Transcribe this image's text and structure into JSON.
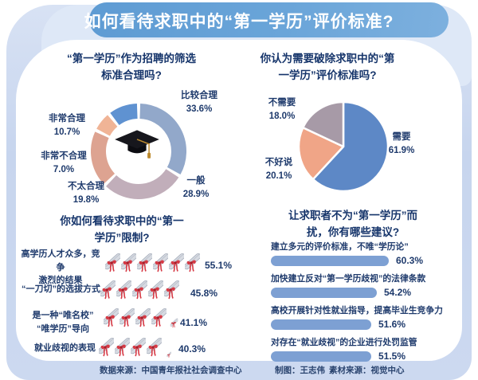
{
  "banner": {
    "title": "如何看待求职中的“第一学历”评价标准?"
  },
  "chart_data": [
    {
      "id": "reasonable-donut",
      "type": "pie",
      "variant": "donut",
      "title": "“第一学历”作为招聘的筛选\n标准合理吗?",
      "labels": [
        "比较合理",
        "一般",
        "不太合理",
        "非常不合理",
        "非常合理"
      ],
      "values": [
        33.6,
        28.9,
        19.8,
        7.0,
        10.7
      ],
      "colors": [
        "#92a8ca",
        "#c1aeba",
        "#dda391",
        "#f0b496",
        "#5f92d1"
      ],
      "start_angle_deg": 0,
      "direction": "clockwise",
      "center_icon": "graduation-cap"
    },
    {
      "id": "abolish-pie",
      "type": "pie",
      "title": "你认为需要破除求职中的“第\n一学历”评价标准吗?",
      "labels": [
        "需要",
        "不好说",
        "不需要"
      ],
      "values": [
        61.9,
        20.1,
        18.0
      ],
      "colors": [
        "#5d88c6",
        "#f0a587",
        "#a79aa7"
      ],
      "start_angle_deg": 0,
      "direction": "clockwise"
    },
    {
      "id": "restriction-pictogram",
      "type": "bar",
      "variant": "pictogram",
      "title": "你如何看待求职中的“第一\n学历”限制?",
      "categories": [
        "高学历人才众多，竞争\n激烈的结果",
        "“一刀切”的选拔方式",
        "是一种“唯名校”\n“唯学历”导向",
        "就业歧视的表现"
      ],
      "values": [
        55.1,
        45.8,
        41.1,
        40.3
      ],
      "icon": "diploma-scroll",
      "icon_counts": [
        6,
        5,
        4.5,
        4.2
      ]
    },
    {
      "id": "suggestions-bars",
      "type": "bar",
      "title": "让求职者不为“第一学历”而\n扰，你有哪些建议?",
      "categories": [
        "建立多元的评价标准，不唯“学历论”",
        "加快建立反对“第一学历歧视”的法律条款",
        "高校开展针对性就业指导，提高毕业生竞争力",
        "对存在“就业歧视”的企业进行处罚监管"
      ],
      "values": [
        60.3,
        54.2,
        51.6,
        51.5
      ],
      "bar_color": "#7da0d3",
      "xlim": [
        0,
        62
      ]
    }
  ],
  "footer": {
    "source": "数据来源：中国青年报社社会调查中心",
    "credit": "制图：王志伟",
    "material": "素材来源：视觉中心"
  },
  "colors": {
    "banner_blue": "#68a4d9",
    "mat_periwinkle": "#c9d6ee",
    "text_navy": "#1e3a6c",
    "bar_blue": "#7da0d3",
    "ribbon_red": "#d63a45",
    "tassel_gold": "#bd8a2e"
  }
}
